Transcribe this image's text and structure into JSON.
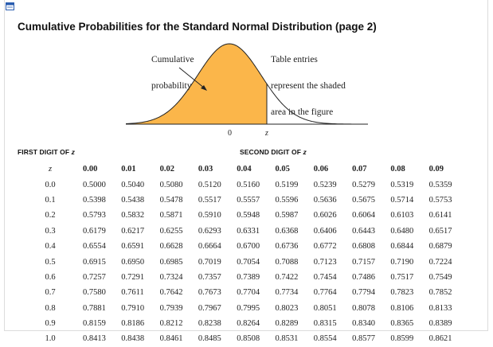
{
  "title": "Cumulative Probabilities for the Standard Normal Distribution (page 2)",
  "figure": {
    "left_label": [
      "Cumulative",
      "probability"
    ],
    "right_label": [
      "Table entries",
      "represent the shaded",
      "area in the figure"
    ],
    "axis_zero": "0",
    "axis_z": "z",
    "fill_color": "#fbb64a"
  },
  "headers": {
    "first_digit": "FIRST DIGIT OF ",
    "second_digit": "SECOND DIGIT OF ",
    "z_var": "z"
  },
  "table": {
    "corner": "z",
    "columns": [
      "0.00",
      "0.01",
      "0.02",
      "0.03",
      "0.04",
      "0.05",
      "0.06",
      "0.07",
      "0.08",
      "0.09"
    ],
    "rows": [
      {
        "z": "0.0",
        "values": [
          "0.5000",
          "0.5040",
          "0.5080",
          "0.5120",
          "0.5160",
          "0.5199",
          "0.5239",
          "0.5279",
          "0.5319",
          "0.5359"
        ]
      },
      {
        "z": "0.1",
        "values": [
          "0.5398",
          "0.5438",
          "0.5478",
          "0.5517",
          "0.5557",
          "0.5596",
          "0.5636",
          "0.5675",
          "0.5714",
          "0.5753"
        ]
      },
      {
        "z": "0.2",
        "values": [
          "0.5793",
          "0.5832",
          "0.5871",
          "0.5910",
          "0.5948",
          "0.5987",
          "0.6026",
          "0.6064",
          "0.6103",
          "0.6141"
        ]
      },
      {
        "z": "0.3",
        "values": [
          "0.6179",
          "0.6217",
          "0.6255",
          "0.6293",
          "0.6331",
          "0.6368",
          "0.6406",
          "0.6443",
          "0.6480",
          "0.6517"
        ]
      },
      {
        "z": "0.4",
        "values": [
          "0.6554",
          "0.6591",
          "0.6628",
          "0.6664",
          "0.6700",
          "0.6736",
          "0.6772",
          "0.6808",
          "0.6844",
          "0.6879"
        ]
      },
      {
        "z": "0.5",
        "values": [
          "0.6915",
          "0.6950",
          "0.6985",
          "0.7019",
          "0.7054",
          "0.7088",
          "0.7123",
          "0.7157",
          "0.7190",
          "0.7224"
        ]
      },
      {
        "z": "0.6",
        "values": [
          "0.7257",
          "0.7291",
          "0.7324",
          "0.7357",
          "0.7389",
          "0.7422",
          "0.7454",
          "0.7486",
          "0.7517",
          "0.7549"
        ]
      },
      {
        "z": "0.7",
        "values": [
          "0.7580",
          "0.7611",
          "0.7642",
          "0.7673",
          "0.7704",
          "0.7734",
          "0.7764",
          "0.7794",
          "0.7823",
          "0.7852"
        ]
      },
      {
        "z": "0.8",
        "values": [
          "0.7881",
          "0.7910",
          "0.7939",
          "0.7967",
          "0.7995",
          "0.8023",
          "0.8051",
          "0.8078",
          "0.8106",
          "0.8133"
        ]
      },
      {
        "z": "0.9",
        "values": [
          "0.8159",
          "0.8186",
          "0.8212",
          "0.8238",
          "0.8264",
          "0.8289",
          "0.8315",
          "0.8340",
          "0.8365",
          "0.8389"
        ]
      },
      {
        "z": "1.0",
        "values": [
          "0.8413",
          "0.8438",
          "0.8461",
          "0.8485",
          "0.8508",
          "0.8531",
          "0.8554",
          "0.8577",
          "0.8599",
          "0.8621"
        ]
      }
    ]
  }
}
